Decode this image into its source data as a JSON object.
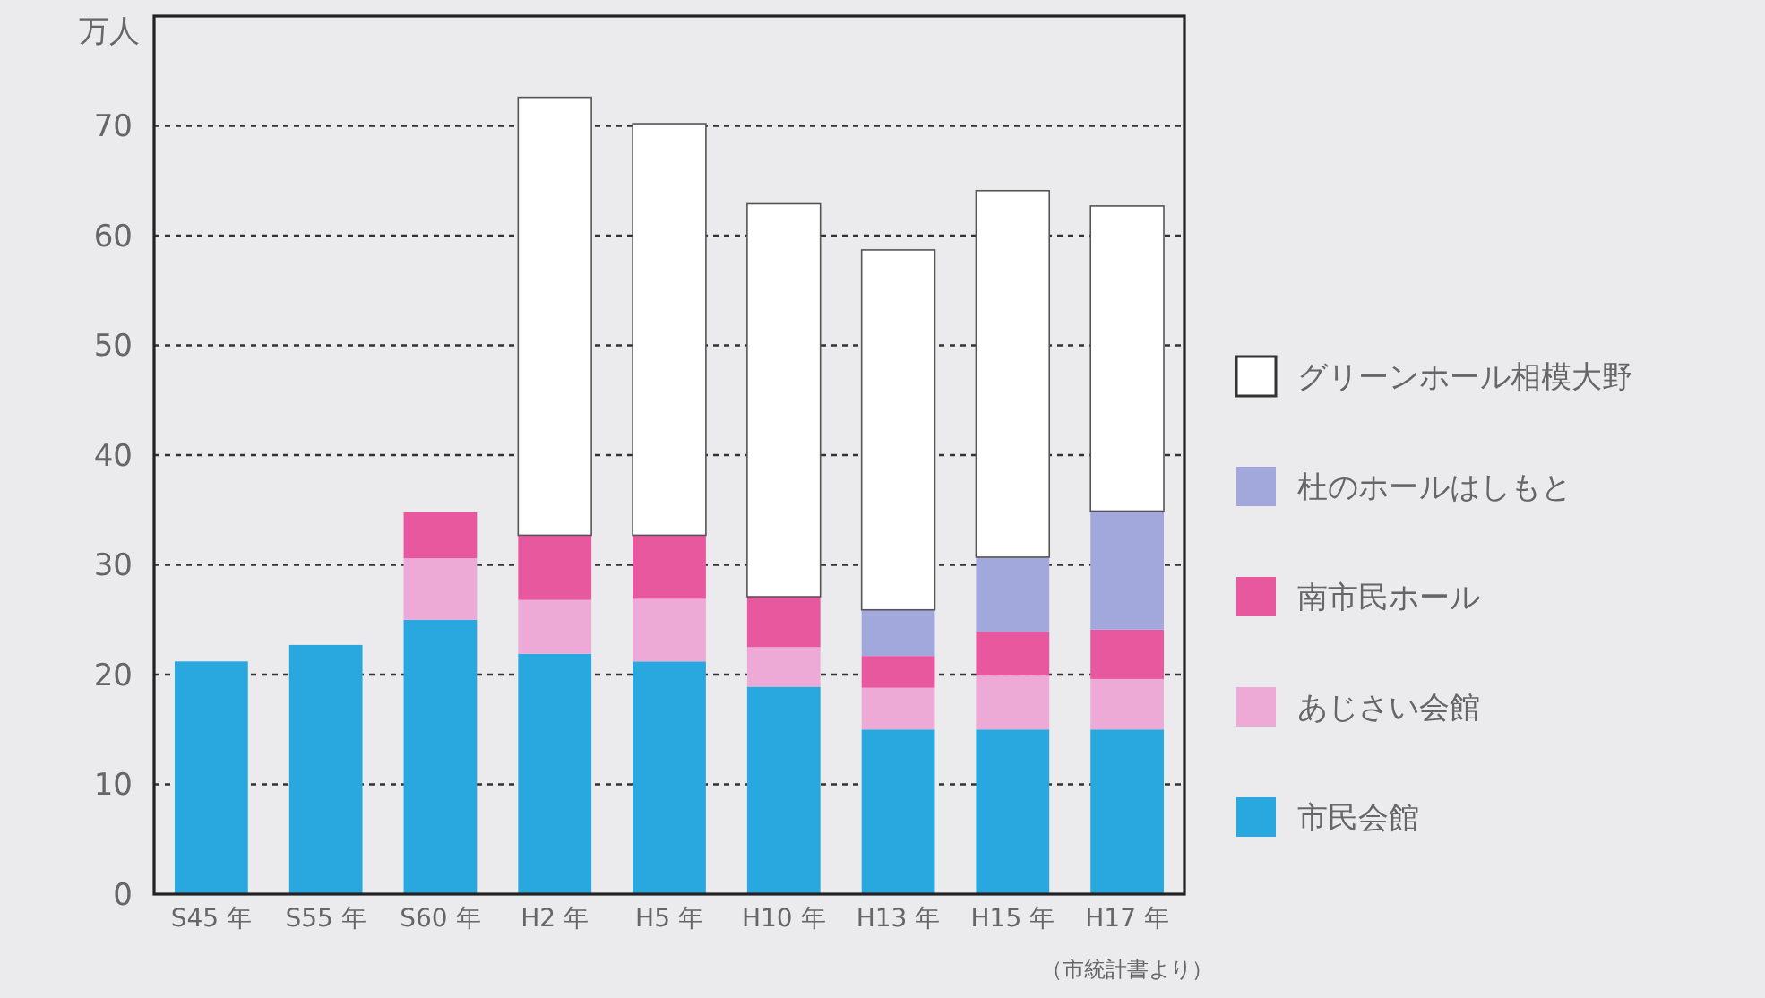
{
  "chart_data": {
    "type": "bar",
    "stacked": true,
    "ylabel": "万人",
    "categories": [
      "S45 年",
      "S55 年",
      "S60 年",
      "H2 年",
      "H5 年",
      "H10 年",
      "H13 年",
      "H15 年",
      "H17 年"
    ],
    "series": [
      {
        "name": "市民会館",
        "color": "#29a8e0",
        "values": [
          21.2,
          22.7,
          25.0,
          21.9,
          21.2,
          18.9,
          15.0,
          15.0,
          15.0
        ]
      },
      {
        "name": "あじさい会館",
        "color": "#eeaad6",
        "values": [
          null,
          null,
          5.6,
          4.9,
          5.7,
          3.6,
          3.8,
          4.9,
          4.6
        ]
      },
      {
        "name": "南市民ホール",
        "color": "#e8589e",
        "values": [
          null,
          null,
          4.2,
          5.9,
          5.8,
          4.6,
          2.9,
          4.0,
          4.5
        ]
      },
      {
        "name": "杜のホールはしもと",
        "color": "#a3a8dc",
        "values": [
          null,
          null,
          null,
          null,
          null,
          null,
          4.2,
          6.8,
          10.8
        ]
      },
      {
        "name": "グリーンホール相模大野",
        "color": "#ffffff",
        "values": [
          null,
          null,
          null,
          39.9,
          37.5,
          35.8,
          32.8,
          33.4,
          27.8
        ]
      }
    ],
    "ylim": [
      0,
      80
    ],
    "yticks": [
      0,
      10,
      20,
      30,
      40,
      50,
      60,
      70
    ],
    "grid": "y",
    "legend": "right",
    "annotations": [
      "（市統計書より）"
    ]
  }
}
